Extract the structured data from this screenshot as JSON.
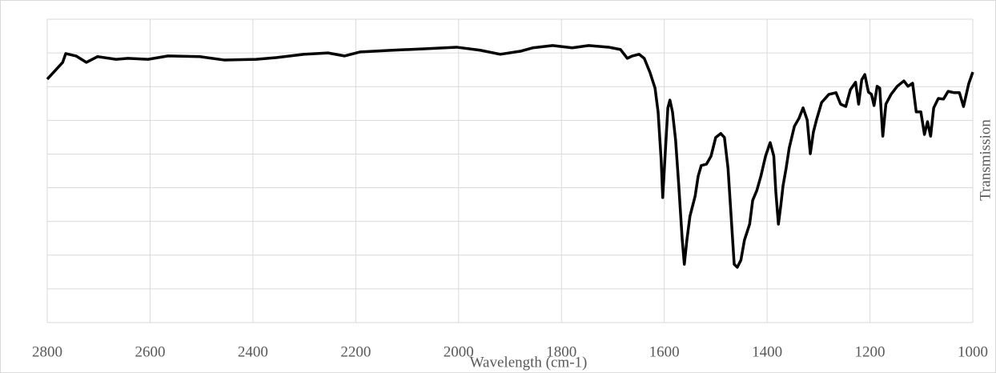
{
  "chart_data": {
    "type": "line",
    "x_label": "Wavelength (cm-1)",
    "y_label": "Transmission",
    "xlim": [
      2800,
      1000
    ],
    "xticks": [
      2800,
      2600,
      2400,
      2200,
      2000,
      1800,
      1600,
      1400,
      1200,
      1000
    ],
    "ylim": [
      0,
      9
    ],
    "ygrid": [
      0,
      1,
      2,
      3,
      4,
      5,
      6,
      7,
      8,
      9
    ],
    "grid": true,
    "color": "#000000",
    "x": [
      2800,
      2770,
      2764,
      2744,
      2724,
      2702,
      2666,
      2643,
      2604,
      2565,
      2503,
      2456,
      2394,
      2355,
      2300,
      2254,
      2222,
      2191,
      2129,
      2067,
      2004,
      1958,
      1919,
      1880,
      1856,
      1817,
      1779,
      1747,
      1708,
      1685,
      1672,
      1662,
      1649,
      1639,
      1628,
      1618,
      1612,
      1606,
      1603,
      1598,
      1593,
      1589,
      1584,
      1578,
      1572,
      1565,
      1561,
      1556,
      1550,
      1540,
      1534,
      1528,
      1518,
      1509,
      1500,
      1490,
      1483,
      1476,
      1470,
      1464,
      1458,
      1451,
      1444,
      1434,
      1428,
      1420,
      1412,
      1403,
      1394,
      1387,
      1383,
      1378,
      1373,
      1369,
      1363,
      1357,
      1347,
      1338,
      1330,
      1322,
      1316,
      1310,
      1304,
      1294,
      1280,
      1266,
      1257,
      1247,
      1238,
      1228,
      1222,
      1216,
      1210,
      1203,
      1197,
      1192,
      1186,
      1181,
      1175,
      1169,
      1159,
      1147,
      1134,
      1126,
      1117,
      1110,
      1101,
      1094,
      1088,
      1082,
      1076,
      1067,
      1057,
      1048,
      1036,
      1026,
      1018,
      1008,
      1000
    ],
    "values": [
      7.22,
      7.72,
      7.98,
      7.91,
      7.72,
      7.89,
      7.81,
      7.84,
      7.81,
      7.91,
      7.89,
      7.79,
      7.81,
      7.86,
      7.96,
      8.0,
      7.91,
      8.03,
      8.08,
      8.12,
      8.17,
      8.08,
      7.96,
      8.05,
      8.15,
      8.22,
      8.15,
      8.22,
      8.17,
      8.1,
      7.84,
      7.91,
      7.96,
      7.84,
      7.43,
      6.96,
      6.25,
      4.82,
      3.71,
      5.06,
      6.37,
      6.6,
      6.25,
      5.42,
      4.11,
      2.45,
      1.73,
      2.45,
      3.16,
      3.75,
      4.35,
      4.66,
      4.7,
      4.94,
      5.49,
      5.61,
      5.49,
      4.58,
      3.16,
      1.73,
      1.64,
      1.85,
      2.45,
      2.92,
      3.63,
      3.92,
      4.35,
      4.94,
      5.34,
      4.94,
      3.87,
      2.92,
      3.52,
      4.06,
      4.58,
      5.18,
      5.82,
      6.06,
      6.37,
      6.01,
      5.01,
      5.65,
      6.01,
      6.53,
      6.77,
      6.82,
      6.48,
      6.41,
      6.91,
      7.13,
      6.48,
      7.2,
      7.36,
      6.84,
      6.77,
      6.44,
      7.01,
      6.96,
      5.53,
      6.48,
      6.77,
      7.01,
      7.17,
      7.01,
      7.1,
      6.25,
      6.25,
      5.58,
      5.96,
      5.53,
      6.37,
      6.65,
      6.63,
      6.86,
      6.82,
      6.82,
      6.41,
      7.08,
      7.43
    ]
  }
}
